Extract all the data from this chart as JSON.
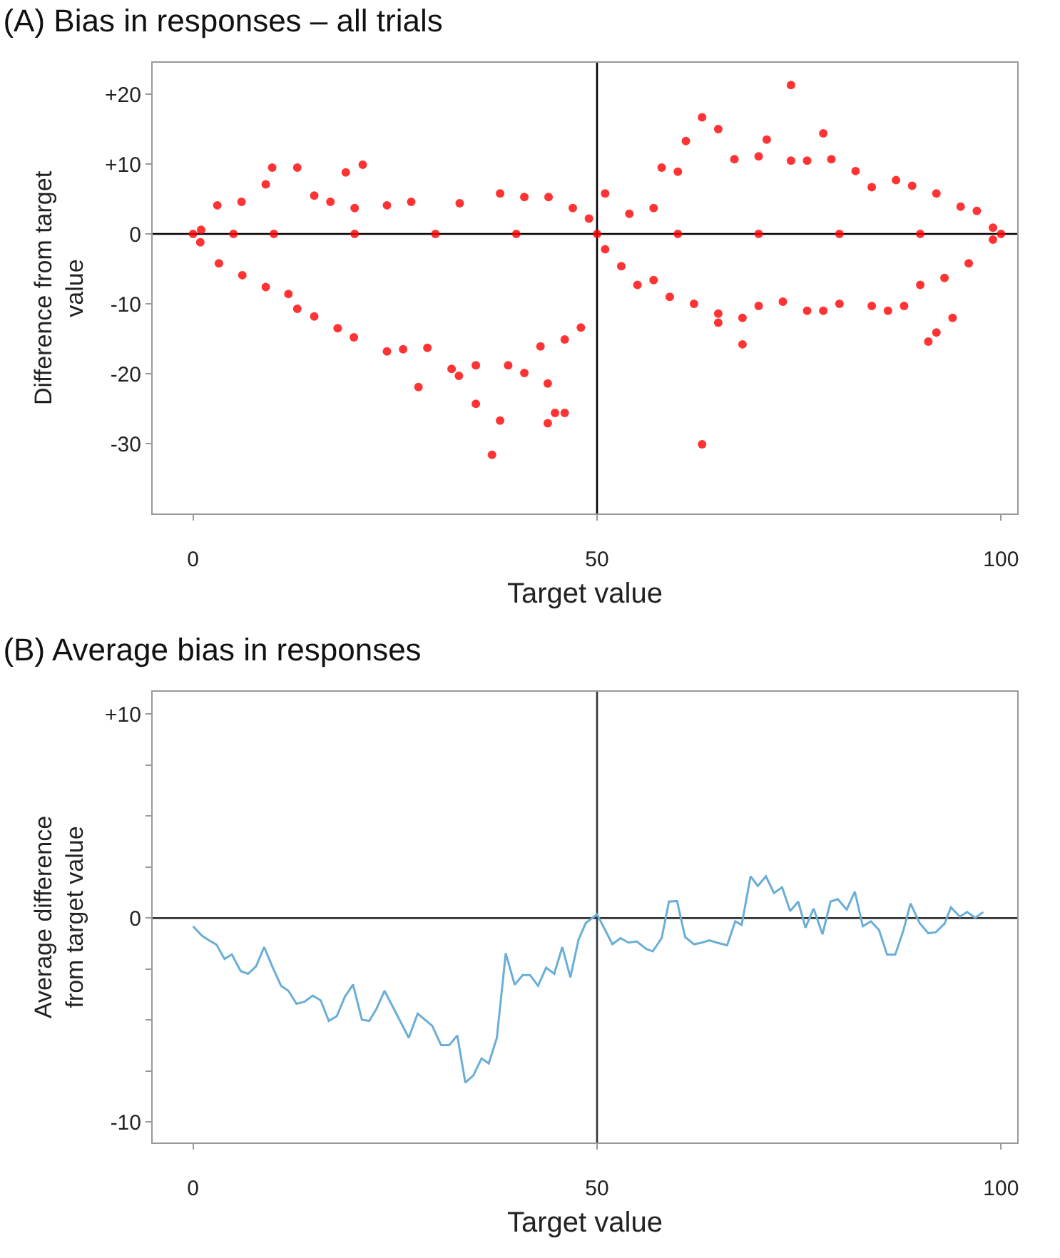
{
  "chart_data": [
    {
      "type": "scatter",
      "title": "(A) Bias in responses – all trials",
      "xlabel": "Target value",
      "ylabel": "Difference from target value",
      "marker": "circle",
      "xlim": [
        -5,
        102
      ],
      "xticks": [
        0,
        50,
        100
      ],
      "ylim": [
        -40,
        24.5
      ],
      "yticks": [
        {
          "value": 20,
          "label": "+20"
        },
        {
          "value": 10,
          "label": "+10"
        },
        0,
        -10,
        -20,
        -30
      ],
      "ref_lines": [
        {
          "axis": "y",
          "value": 0,
          "color": "#000000"
        },
        {
          "axis": "x",
          "value": 50,
          "color": "#000000"
        }
      ],
      "series": [
        {
          "color": "#ff0000",
          "x": [
            9.8,
            12.9,
            9,
            18.9,
            21,
            27.9,
            35,
            37,
            38,
            43.9,
            44.8,
            46,
            43.9,
            41,
            32.9,
            0.9,
            3.2,
            6.1,
            9,
            11.8,
            12.9,
            15,
            17.9,
            19.9,
            24,
            26,
            29,
            32,
            35,
            39,
            43,
            46,
            48,
            1,
            3,
            6,
            15,
            17,
            20,
            24,
            27,
            33,
            38,
            41,
            44,
            47,
            49,
            74,
            63,
            65,
            61,
            71,
            78,
            63,
            68,
            91,
            92,
            94,
            65,
            87,
            51,
            54,
            57,
            58,
            60,
            67,
            70,
            74,
            76,
            79,
            82,
            84,
            89,
            92,
            95,
            97,
            99,
            51,
            53,
            55,
            57,
            59,
            62,
            65,
            68,
            70,
            73,
            76,
            78,
            80,
            84,
            86,
            88,
            90,
            93,
            96,
            99,
            0,
            5,
            10,
            20,
            30,
            40,
            50,
            60,
            70,
            80,
            90,
            100
          ],
          "values": [
            9.5,
            9.5,
            7.1,
            8.8,
            9.9,
            -21.9,
            -24.3,
            -31.6,
            -26.7,
            -27.1,
            -25.6,
            -25.6,
            -21.4,
            -19.9,
            -20.3,
            -1.2,
            -4.2,
            -5.9,
            -7.6,
            -8.6,
            -10.7,
            -11.8,
            -13.5,
            -14.8,
            -16.8,
            -16.5,
            -16.3,
            -19.3,
            -18.8,
            -18.8,
            -16.1,
            -15.1,
            -13.4,
            0.6,
            4.1,
            4.6,
            5.5,
            4.6,
            3.7,
            4.1,
            4.6,
            4.4,
            5.8,
            5.3,
            5.3,
            3.7,
            2.2,
            21.3,
            16.7,
            15,
            13.3,
            13.5,
            14.4,
            -30.1,
            -15.8,
            -15.4,
            -14.1,
            -12,
            -12.7,
            7.7,
            5.8,
            2.9,
            3.7,
            9.5,
            8.9,
            10.7,
            11.1,
            10.5,
            10.5,
            10.7,
            9,
            6.7,
            6.9,
            5.8,
            3.9,
            3.3,
            0.9,
            -2.2,
            -4.6,
            -7.3,
            -6.6,
            -9,
            -10,
            -11.4,
            -12,
            -10.3,
            -9.7,
            -11,
            -11,
            -10,
            -10.3,
            -11,
            -10.3,
            -7.3,
            -6.3,
            -4.2,
            -0.8,
            0,
            0,
            0,
            0,
            0,
            0,
            0,
            0,
            0,
            0,
            0,
            0
          ]
        }
      ]
    },
    {
      "type": "line",
      "title": "(B) Average bias in responses",
      "xlabel": "Target value",
      "ylabel": "Average difference from target value",
      "line_style": "solid",
      "xlim": [
        -5,
        102
      ],
      "xticks": [
        0,
        50,
        100
      ],
      "ylim": [
        -11,
        11.1
      ],
      "yticks": [
        {
          "value": 10,
          "label": "+10"
        },
        {
          "value": 7.5,
          "label": null
        },
        {
          "value": 5,
          "label": null
        },
        {
          "value": 2.5,
          "label": null
        },
        0,
        {
          "value": -2.5,
          "label": null
        },
        {
          "value": -5,
          "label": null
        },
        {
          "value": -7.5,
          "label": null
        },
        -10
      ],
      "ref_lines": [
        {
          "axis": "y",
          "value": 0,
          "color": "#333333"
        },
        {
          "axis": "x",
          "value": 50,
          "color": "#333333"
        }
      ],
      "series": [
        {
          "color": "#6aaed6",
          "x": [
            0,
            1.1,
            1.9,
            2.9,
            3.9,
            4.8,
            5.9,
            6.8,
            7.8,
            8.8,
            9.8,
            10.9,
            11.8,
            12.8,
            13.8,
            14.8,
            15.8,
            16.8,
            17.8,
            18.8,
            19.8,
            20.9,
            21.8,
            22.7,
            23.7,
            24.7,
            25.7,
            26.7,
            27.8,
            28.7,
            29.6,
            30.7,
            31.7,
            32.7,
            33.7,
            34.7,
            35.7,
            36.6,
            37.6,
            38.7,
            39.8,
            40.8,
            41.7,
            42.7,
            43.7,
            44.7,
            45.7,
            46.7,
            47.7,
            48.6,
            50,
            51.9,
            52.9,
            53.9,
            54.9,
            56.1,
            56.9,
            58,
            58.9,
            59.9,
            60.9,
            62,
            62.9,
            63.9,
            64.9,
            66.1,
            67.1,
            67.9,
            69,
            69.9,
            70.9,
            71.9,
            72.9,
            73.9,
            74.9,
            75.8,
            76.8,
            77.9,
            78.9,
            79.8,
            80.9,
            81.9,
            82.9,
            83.9,
            84.9,
            85.9,
            86.9,
            87.9,
            88.8,
            89.9,
            91,
            91.9,
            93,
            93.8,
            94.9,
            95.8,
            96.8,
            97.8
          ],
          "values": [
            -0.4,
            -0.86,
            -1.07,
            -1.3,
            -2,
            -1.78,
            -2.6,
            -2.73,
            -2.37,
            -1.42,
            -2.37,
            -3.32,
            -3.56,
            -4.2,
            -4.1,
            -3.8,
            -4.03,
            -5.04,
            -4.8,
            -3.85,
            -3.26,
            -4.98,
            -5.04,
            -4.45,
            -3.56,
            -4.33,
            -5.1,
            -5.87,
            -4.68,
            -4.98,
            -5.28,
            -6.23,
            -6.23,
            -5.75,
            -8.07,
            -7.71,
            -6.88,
            -7.12,
            -5.87,
            -1.72,
            -3.26,
            -2.79,
            -2.79,
            -3.32,
            -2.43,
            -2.73,
            -1.42,
            -2.9,
            -1.07,
            -0.24,
            0.19,
            -1.28,
            -0.98,
            -1.2,
            -1.14,
            -1.51,
            -1.63,
            -0.98,
            0.81,
            0.84,
            -0.93,
            -1.28,
            -1.21,
            -1.09,
            -1.21,
            -1.33,
            -0.16,
            -0.33,
            2.05,
            1.58,
            2.05,
            1.23,
            1.51,
            0.35,
            0.81,
            -0.47,
            0.47,
            -0.79,
            0.81,
            0.93,
            0.42,
            1.3,
            -0.4,
            -0.16,
            -0.58,
            -1.79,
            -1.79,
            -0.63,
            0.72,
            -0.23,
            -0.74,
            -0.7,
            -0.28,
            0.53,
            0.07,
            0.3,
            0.02,
            0.3
          ]
        }
      ]
    }
  ]
}
